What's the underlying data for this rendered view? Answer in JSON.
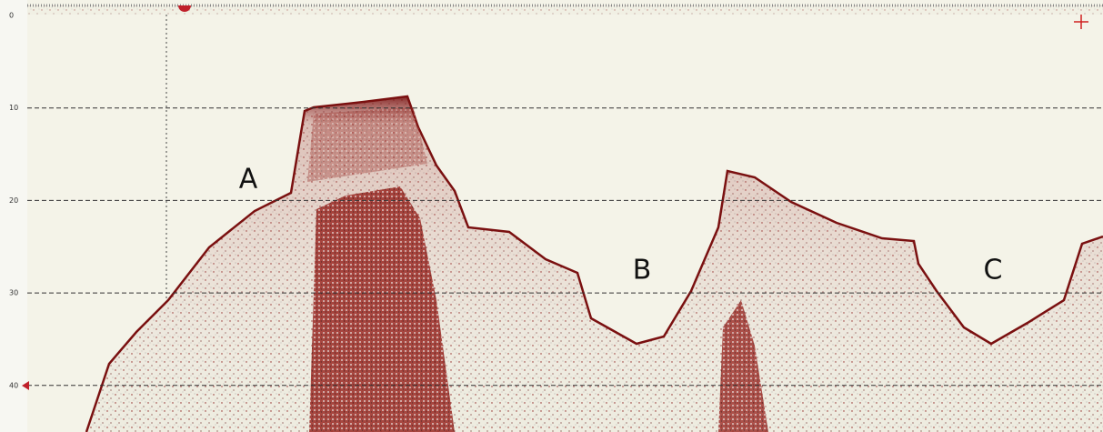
{
  "depth_scale": {
    "ticks": [
      0,
      10,
      20,
      30,
      40
    ]
  },
  "annotations": [
    "A",
    "B",
    "C"
  ]
}
